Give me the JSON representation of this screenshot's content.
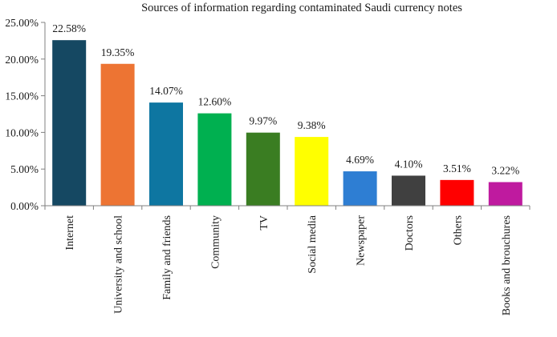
{
  "chart_data": {
    "type": "bar",
    "title": "Sources of information regarding contaminated Saudi currency notes",
    "xlabel": "",
    "ylabel": "",
    "ylim": [
      0,
      25
    ],
    "ytick_step": 5,
    "grid": false,
    "legend": "none",
    "categories": [
      "Internet",
      "University and school",
      "Family and friends",
      "Community",
      "TV",
      "Social media",
      "Newspaper",
      "Doctors",
      "Others",
      "Books and brouchures"
    ],
    "values": [
      22.58,
      19.35,
      14.07,
      12.6,
      9.97,
      9.38,
      4.69,
      4.1,
      3.51,
      3.22
    ],
    "data_labels": [
      "22.58%",
      "19.35%",
      "14.07%",
      "12.60%",
      "9.97%",
      "9.38%",
      "4.69%",
      "4.10%",
      "3.51%",
      "3.22%"
    ],
    "ytick_labels": [
      "0.00%",
      "5.00%",
      "10.00%",
      "15.00%",
      "20.00%",
      "25.00%"
    ],
    "colors": [
      "#154862",
      "#ED7433",
      "#0E76A1",
      "#00B050",
      "#3A7D22",
      "#FFFF00",
      "#2E7ED3",
      "#404040",
      "#FF0000",
      "#BF1A9F"
    ]
  }
}
